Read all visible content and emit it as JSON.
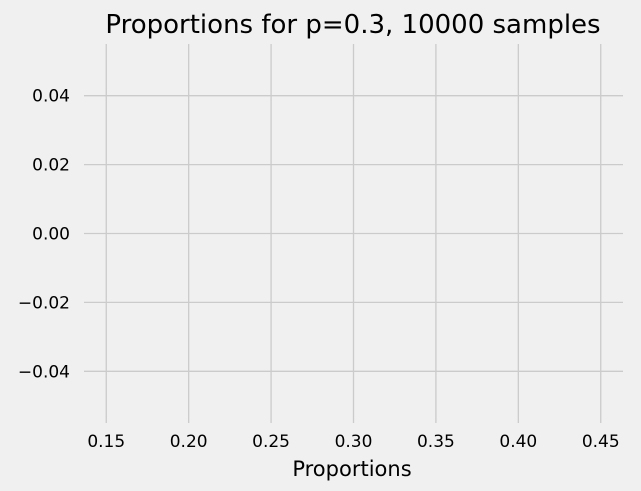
{
  "chart_data": {
    "type": "histogram",
    "title": "Proportions for p=0.3, 10000 samples",
    "xlabel": "Proportions",
    "ylabel": "",
    "xlim": [
      0.1365,
      0.4635
    ],
    "ylim": [
      -0.055,
      0.055
    ],
    "x_ticks": [
      "0.15",
      "0.20",
      "0.25",
      "0.30",
      "0.35",
      "0.40",
      "0.45"
    ],
    "x_tick_values": [
      0.15,
      0.2,
      0.25,
      0.3,
      0.35,
      0.4,
      0.45
    ],
    "y_ticks": [
      "−0.04",
      "−0.02",
      "0.00",
      "0.02",
      "0.04"
    ],
    "y_tick_values": [
      -0.04,
      -0.02,
      0.0,
      0.02,
      0.04
    ],
    "series": [],
    "grid": true,
    "legend": "none"
  },
  "colors": {
    "background": "#f0f0f0",
    "grid": "#cbcbcb",
    "text": "#000000"
  }
}
